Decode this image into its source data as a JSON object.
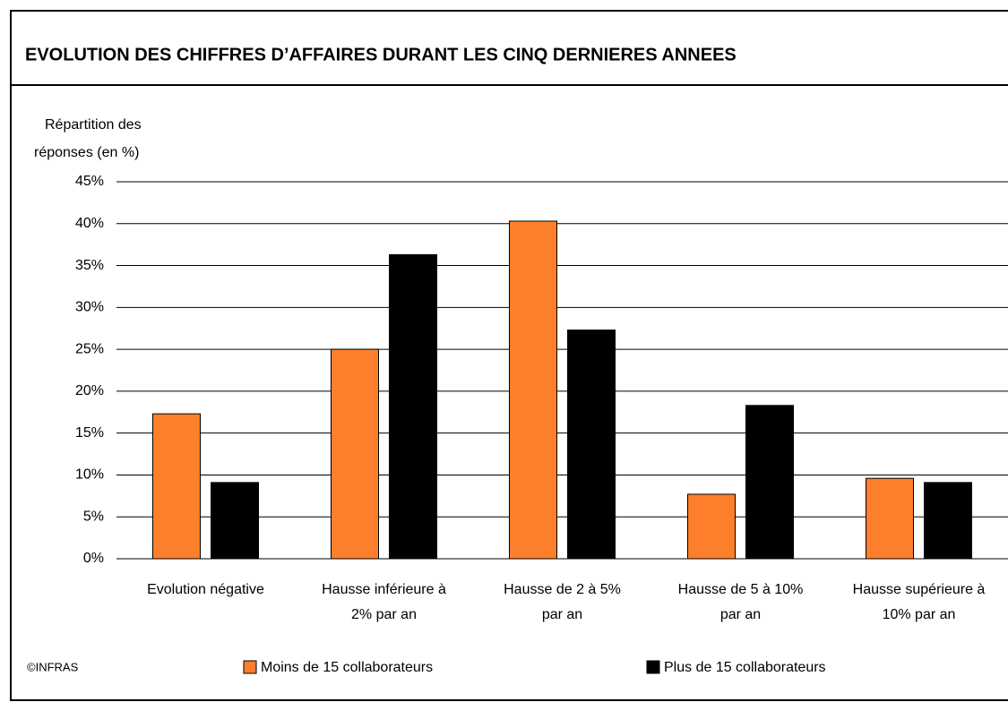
{
  "chart_data": {
    "type": "bar",
    "title": "EVOLUTION DES CHIFFRES D’AFFAIRES DURANT LES CINQ DERNIERES ANNEES",
    "y_label": [
      "Répartition des",
      "réponses (en %)"
    ],
    "categories": [
      [
        "Evolution négative"
      ],
      [
        "Hausse inférieure à",
        "2% par an"
      ],
      [
        "Hausse de 2 à 5%",
        "par an"
      ],
      [
        "Hausse de 5 à 10%",
        "par an"
      ],
      [
        "Hausse supérieure à",
        "10% par an"
      ]
    ],
    "series": [
      {
        "name": "Moins de 15 collaborateurs",
        "color": "#fd7f2b",
        "values": [
          17.3,
          25.0,
          40.3,
          7.7,
          9.6
        ]
      },
      {
        "name": "Plus de 15 collaborateurs",
        "color": "#000000",
        "values": [
          9.1,
          36.3,
          27.3,
          18.3,
          9.1
        ]
      }
    ],
    "ylim": [
      0,
      45
    ],
    "yticks": [
      {
        "value": 0,
        "label": "0%"
      },
      {
        "value": 5,
        "label": "5%"
      },
      {
        "value": 10,
        "label": "10%"
      },
      {
        "value": 15,
        "label": "15%"
      },
      {
        "value": 20,
        "label": "20%"
      },
      {
        "value": 25,
        "label": "25%"
      },
      {
        "value": 30,
        "label": "30%"
      },
      {
        "value": 35,
        "label": "35%"
      },
      {
        "value": 40,
        "label": "40%"
      },
      {
        "value": 45,
        "label": "45%"
      }
    ],
    "grid": true,
    "source": "©INFRAS"
  }
}
